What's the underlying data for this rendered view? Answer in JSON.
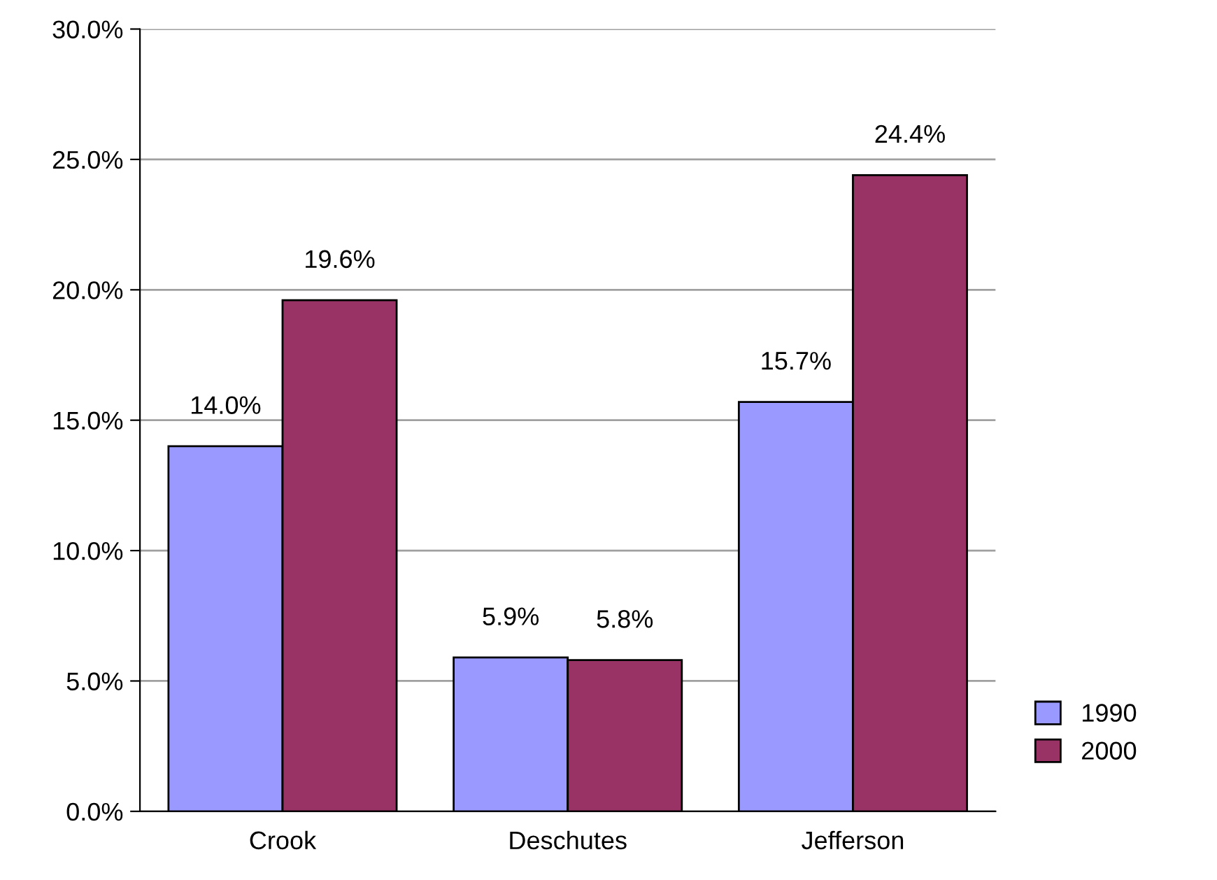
{
  "chart_data": {
    "type": "bar",
    "categories": [
      "Crook",
      "Deschutes",
      "Jefferson"
    ],
    "series": [
      {
        "name": "1990",
        "color": "#9999ff",
        "values": [
          14.0,
          5.9,
          15.7
        ],
        "value_labels": [
          "14.0%",
          "5.9%",
          "15.7%"
        ]
      },
      {
        "name": "2000",
        "color": "#993366",
        "values": [
          19.6,
          5.8,
          24.4
        ],
        "value_labels": [
          "19.6%",
          "5.8%",
          "24.4%"
        ]
      }
    ],
    "ylim": [
      0,
      30
    ],
    "yticks": [
      {
        "value": 0,
        "label": "0.0%"
      },
      {
        "value": 5,
        "label": "5.0%"
      },
      {
        "value": 10,
        "label": "10.0%"
      },
      {
        "value": 15,
        "label": "15.0%"
      },
      {
        "value": 20,
        "label": "20.0%"
      },
      {
        "value": 25,
        "label": "25.0%"
      },
      {
        "value": 30,
        "label": "30.0%"
      }
    ],
    "grid": "y",
    "legend": "right"
  }
}
